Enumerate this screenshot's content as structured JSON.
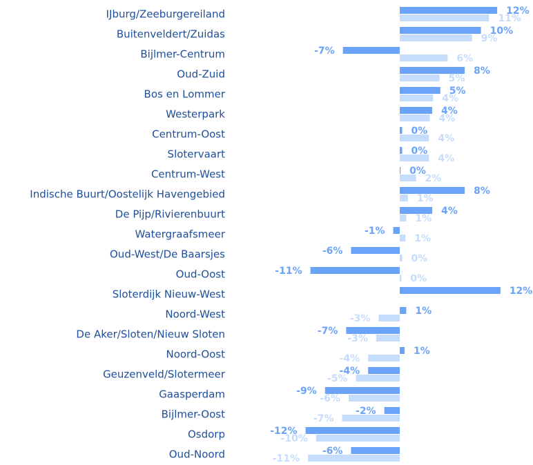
{
  "chart_data": {
    "type": "bar",
    "orientation": "horizontal",
    "categories": [
      "IJburg/Zeeburgereiland",
      "Buitenveldert/Zuidas",
      "Bijlmer-Centrum",
      "Oud-Zuid",
      "Bos en Lommer",
      "Westerpark",
      "Centrum-Oost",
      "Slotervaart",
      "Centrum-West",
      "Indische Buurt/Oostelijk Havengebied",
      "De Pijp/Rivierenbuurt",
      "Watergraafsmeer",
      "Oud-West/De Baarsjes",
      "Oud-Oost",
      "Sloterdijk Nieuw-West",
      "Noord-West",
      "De Aker/Sloten/Nieuw Sloten",
      "Noord-Oost",
      "Geuzenveld/Slotermeer",
      "Gaasperdam",
      "Bijlmer-Oost",
      "Osdorp",
      "Oud-Noord"
    ],
    "xlim": [
      -12.5,
      12.5
    ],
    "series": [
      {
        "color": "#6aa3f8",
        "values": [
          12,
          10,
          -7,
          8,
          5,
          4,
          0.3,
          0.3,
          0.1,
          8,
          4,
          -0.8,
          -6,
          -11,
          12.4,
          0.8,
          -6.6,
          0.6,
          -3.9,
          -9.2,
          -1.9,
          -11.6,
          -6
        ],
        "value_labels": [
          "12%",
          "10%",
          "-7%",
          "8%",
          "5%",
          "4%",
          "0%",
          "0%",
          "0%",
          "8%",
          "4%",
          "-1%",
          "-6%",
          "-11%",
          "12%",
          "1%",
          "-7%",
          "1%",
          "-4%",
          "-9%",
          "-2%",
          "-12%",
          "-6%"
        ]
      },
      {
        "color": "#c6dcfc",
        "values": [
          11,
          8.9,
          5.9,
          4.9,
          4.1,
          3.7,
          3.6,
          3.6,
          2,
          1,
          0.8,
          0.7,
          0.3,
          0.2,
          null,
          -2.6,
          -2.9,
          -3.9,
          -5.4,
          -6.3,
          -7.1,
          -10.3,
          -11.3
        ],
        "value_labels": [
          "11%",
          "9%",
          "6%",
          "5%",
          "4%",
          "4%",
          "4%",
          "4%",
          "2%",
          "1%",
          "1%",
          "1%",
          "0%",
          "0%",
          null,
          "-3%",
          "-3%",
          "-4%",
          "-5%",
          "-6%",
          "-7%",
          "-10%",
          "-11%"
        ]
      }
    ]
  }
}
